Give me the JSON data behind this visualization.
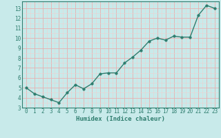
{
  "x": [
    0,
    1,
    2,
    3,
    4,
    5,
    6,
    7,
    8,
    9,
    10,
    11,
    12,
    13,
    14,
    15,
    16,
    17,
    18,
    19,
    20,
    21,
    22,
    23
  ],
  "y": [
    5.0,
    4.4,
    4.1,
    3.8,
    3.5,
    4.5,
    5.3,
    4.9,
    5.4,
    6.4,
    6.5,
    6.5,
    7.5,
    8.1,
    8.8,
    9.7,
    10.0,
    9.8,
    10.2,
    10.1,
    10.1,
    12.3,
    13.3,
    13.0
  ],
  "xlabel": "Humidex (Indice chaleur)",
  "xlim": [
    -0.5,
    23.5
  ],
  "ylim": [
    3.0,
    13.7
  ],
  "yticks": [
    3,
    4,
    5,
    6,
    7,
    8,
    9,
    10,
    11,
    12,
    13
  ],
  "xticks": [
    0,
    1,
    2,
    3,
    4,
    5,
    6,
    7,
    8,
    9,
    10,
    11,
    12,
    13,
    14,
    15,
    16,
    17,
    18,
    19,
    20,
    21,
    22,
    23
  ],
  "line_color": "#2e7d6e",
  "bg_color": "#c8eaea",
  "grid_major_color": "#e8b0b0",
  "grid_minor_color": "#f0d0d0",
  "marker_size": 2.5,
  "line_width": 1.0
}
